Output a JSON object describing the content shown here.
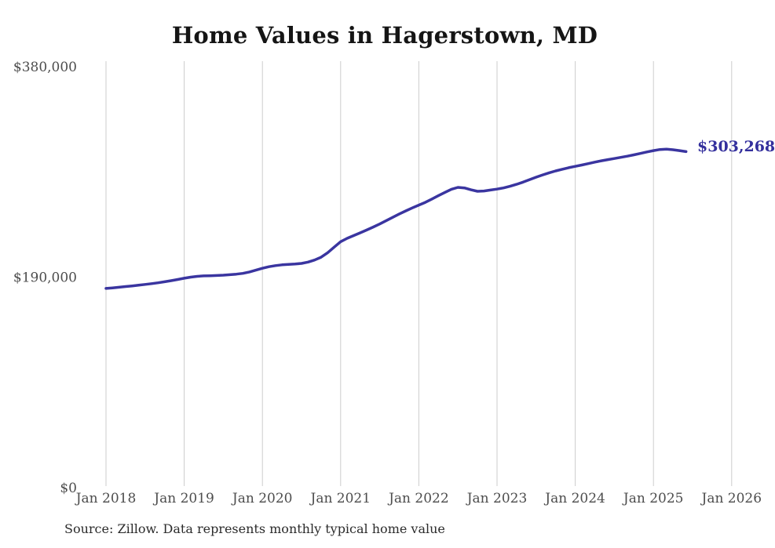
{
  "end_label": "$303,268",
  "source_note": "Source: Zillow. Data represents monthly typical home value",
  "colors": {
    "line": "#3a35a0",
    "grid": "#cccccc",
    "axis_text": "#4d4d4d",
    "title_text": "#151515",
    "end_label_text": "#34309d",
    "background": "#ffffff"
  },
  "chart_data": {
    "type": "line",
    "title": "Home Values in Hagerstown, MD",
    "xlabel": "",
    "ylabel": "",
    "ylim": [
      0,
      380000
    ],
    "grid": "vertical-only",
    "legend": "none",
    "unit": "USD",
    "start_month": "2018-01",
    "end_month": "2025-06",
    "y_ticks": [
      {
        "label": "$0",
        "value": 0
      },
      {
        "label": "$190,000",
        "value": 190000
      },
      {
        "label": "$380,000",
        "value": 380000
      }
    ],
    "x_ticks": [
      {
        "label": "Jan 2018",
        "month_index": 0
      },
      {
        "label": "Jan 2019",
        "month_index": 12
      },
      {
        "label": "Jan 2020",
        "month_index": 24
      },
      {
        "label": "Jan 2021",
        "month_index": 36
      },
      {
        "label": "Jan 2022",
        "month_index": 48
      },
      {
        "label": "Jan 2023",
        "month_index": 60
      },
      {
        "label": "Jan 2024",
        "month_index": 72
      },
      {
        "label": "Jan 2025",
        "month_index": 84
      },
      {
        "label": "Jan 2026",
        "month_index": 96
      }
    ],
    "end_value": 303268,
    "series": [
      {
        "name": "Monthly typical home value",
        "values": [
          179800,
          180300,
          180900,
          181500,
          182100,
          182700,
          183400,
          184100,
          184900,
          185800,
          186800,
          187900,
          189000,
          190000,
          190700,
          191100,
          191300,
          191500,
          191800,
          192200,
          192700,
          193400,
          194700,
          196300,
          198000,
          199400,
          200400,
          201100,
          201500,
          201800,
          202400,
          203600,
          205400,
          208000,
          212000,
          217000,
          222000,
          225000,
          227500,
          230000,
          232500,
          235200,
          238000,
          241000,
          244000,
          247000,
          249800,
          252500,
          255000,
          257500,
          260500,
          263500,
          266500,
          269300,
          271000,
          270500,
          268800,
          267500,
          267800,
          268600,
          269500,
          270500,
          272000,
          273800,
          275800,
          278000,
          280200,
          282300,
          284200,
          285900,
          287400,
          288800,
          290000,
          291200,
          292500,
          293800,
          295000,
          296100,
          297100,
          298100,
          299200,
          300400,
          301700,
          303000,
          304200,
          305200,
          305500,
          305000,
          304200,
          303268
        ]
      }
    ]
  }
}
